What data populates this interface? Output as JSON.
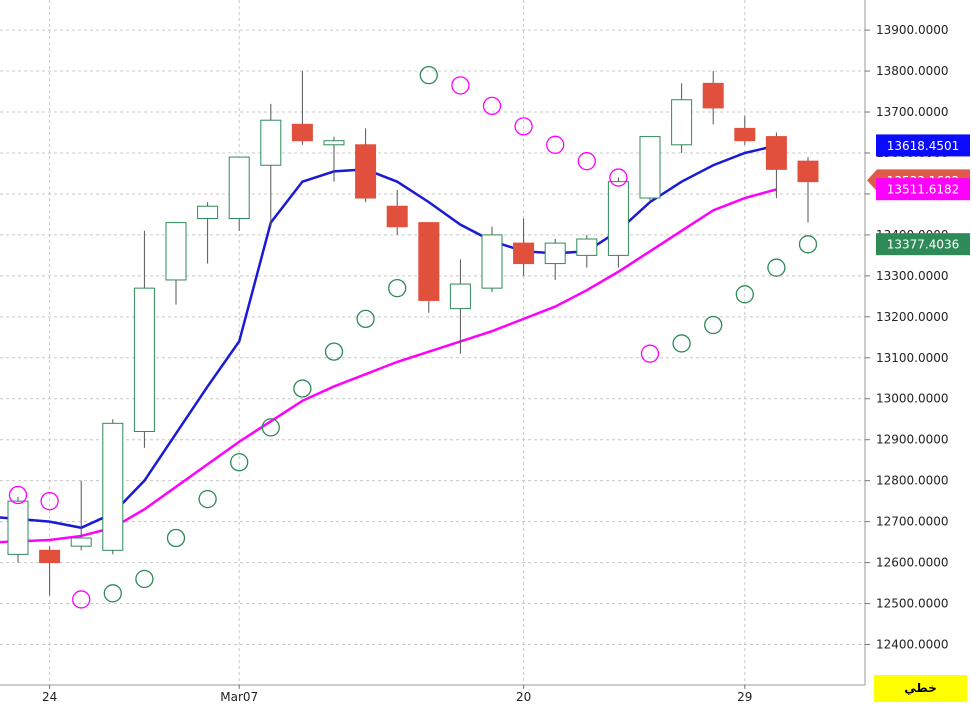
{
  "chart_data": {
    "type": "candlestick",
    "title": "",
    "xlabel": "",
    "ylabel": "",
    "ylim": [
      12330,
      13960
    ],
    "y_ticks": [
      "12400.0000",
      "12500.0000",
      "12600.0000",
      "12700.0000",
      "12800.0000",
      "12900.0000",
      "13000.0000",
      "13100.0000",
      "13200.0000",
      "13300.0000",
      "13400.0000",
      "13500.0000",
      "13600.0000",
      "13700.0000",
      "13800.0000",
      "13900.0000"
    ],
    "x_tick_labels": [
      {
        "label": "24",
        "index": 1
      },
      {
        "label": "Mar07",
        "index": 7
      },
      {
        "label": "20",
        "index": 16
      },
      {
        "label": "29",
        "index": 23
      }
    ],
    "grid": true,
    "colors": {
      "up_candle": "#2e8b57",
      "down_candle": "#e0503c",
      "ma_fast": "#1a1ad6",
      "ma_slow": "#ff00ff",
      "sar_bull": "#2e8b57",
      "sar_bear": "#ff00ff",
      "grid": "#c8c8c8",
      "background": "#ffffff"
    },
    "candles": [
      {
        "open": 12620,
        "high": 12760,
        "low": 12600,
        "close": 12750
      },
      {
        "open": 12630,
        "high": 12640,
        "low": 12520,
        "close": 12600
      },
      {
        "open": 12640,
        "high": 12800,
        "low": 12630,
        "close": 12660
      },
      {
        "open": 12630,
        "high": 12950,
        "low": 12620,
        "close": 12940
      },
      {
        "open": 12920,
        "high": 13410,
        "low": 12880,
        "close": 13270
      },
      {
        "open": 13290,
        "high": 13430,
        "low": 13230,
        "close": 13430
      },
      {
        "open": 13440,
        "high": 13480,
        "low": 13330,
        "close": 13470
      },
      {
        "open": 13440,
        "high": 13590,
        "low": 13410,
        "close": 13590
      },
      {
        "open": 13570,
        "high": 13720,
        "low": 13420,
        "close": 13680
      },
      {
        "open": 13670,
        "high": 13800,
        "low": 13620,
        "close": 13630
      },
      {
        "open": 13620,
        "high": 13640,
        "low": 13530,
        "close": 13630
      },
      {
        "open": 13620,
        "high": 13660,
        "low": 13480,
        "close": 13490
      },
      {
        "open": 13470,
        "high": 13510,
        "low": 13400,
        "close": 13420
      },
      {
        "open": 13430,
        "high": 13430,
        "low": 13210,
        "close": 13240
      },
      {
        "open": 13220,
        "high": 13340,
        "low": 13110,
        "close": 13280
      },
      {
        "open": 13270,
        "high": 13420,
        "low": 13260,
        "close": 13400
      },
      {
        "open": 13380,
        "high": 13440,
        "low": 13300,
        "close": 13330
      },
      {
        "open": 13330,
        "high": 13390,
        "low": 13290,
        "close": 13380
      },
      {
        "open": 13350,
        "high": 13400,
        "low": 13320,
        "close": 13390
      },
      {
        "open": 13350,
        "high": 13540,
        "low": 13320,
        "close": 13530
      },
      {
        "open": 13490,
        "high": 13640,
        "low": 13480,
        "close": 13640
      },
      {
        "open": 13620,
        "high": 13770,
        "low": 13600,
        "close": 13730
      },
      {
        "open": 13770,
        "high": 13800,
        "low": 13670,
        "close": 13710
      },
      {
        "open": 13660,
        "high": 13690,
        "low": 13620,
        "close": 13630
      },
      {
        "open": 13640,
        "high": 13650,
        "low": 13490,
        "close": 13560
      },
      {
        "open": 13580,
        "high": 13590,
        "low": 13430,
        "close": 13530
      }
    ],
    "ma_fast": [
      12710,
      12700,
      12685,
      12720,
      12800,
      12915,
      13030,
      13140,
      13430,
      13530,
      13555,
      13560,
      13530,
      13480,
      13425,
      13385,
      13360,
      13355,
      13360,
      13410,
      13480,
      13530,
      13570,
      13600,
      13618
    ],
    "ma_slow": [
      12650,
      12655,
      12665,
      12685,
      12730,
      12785,
      12840,
      12895,
      12945,
      12995,
      13030,
      13060,
      13090,
      13115,
      13140,
      13165,
      13195,
      13225,
      13265,
      13310,
      13360,
      13410,
      13460,
      13490,
      13511
    ],
    "sar": [
      {
        "value": 12765,
        "trend": "bear"
      },
      {
        "value": 12750,
        "trend": "bear"
      },
      {
        "value": 12510,
        "trend": "bear"
      },
      {
        "value": 12525,
        "trend": "bull"
      },
      {
        "value": 12560,
        "trend": "bull"
      },
      {
        "value": 12660,
        "trend": "bull"
      },
      {
        "value": 12755,
        "trend": "bull"
      },
      {
        "value": 12845,
        "trend": "bull"
      },
      {
        "value": 12930,
        "trend": "bull"
      },
      {
        "value": 13025,
        "trend": "bull"
      },
      {
        "value": 13115,
        "trend": "bull"
      },
      {
        "value": 13195,
        "trend": "bull"
      },
      {
        "value": 13270,
        "trend": "bull"
      },
      {
        "value": 13790,
        "trend": "bull"
      },
      {
        "value": 13765,
        "trend": "bear"
      },
      {
        "value": 13715,
        "trend": "bear"
      },
      {
        "value": 13665,
        "trend": "bear"
      },
      {
        "value": 13620,
        "trend": "bear"
      },
      {
        "value": 13580,
        "trend": "bear"
      },
      {
        "value": 13540,
        "trend": "bear"
      },
      {
        "value": 13110,
        "trend": "bear"
      },
      {
        "value": 13135,
        "trend": "bull"
      },
      {
        "value": 13180,
        "trend": "bull"
      },
      {
        "value": 13255,
        "trend": "bull"
      },
      {
        "value": 13320,
        "trend": "bull"
      },
      {
        "value": 13377,
        "trend": "bull"
      }
    ],
    "price_tags": [
      {
        "label": "13618.4501",
        "value": 13618.4501,
        "color": "#0a0aff",
        "shape": "rect"
      },
      {
        "label": "13533.1602",
        "value": 13533.1602,
        "color": "#e05a4a",
        "shape": "arrow"
      },
      {
        "label": "13511.6182",
        "value": 13511.6182,
        "color": "#ff00ff",
        "shape": "rect"
      },
      {
        "label": "13377.4036",
        "value": 13377.4036,
        "color": "#2e8b57",
        "shape": "rect"
      }
    ]
  },
  "corner_label": "خطي"
}
